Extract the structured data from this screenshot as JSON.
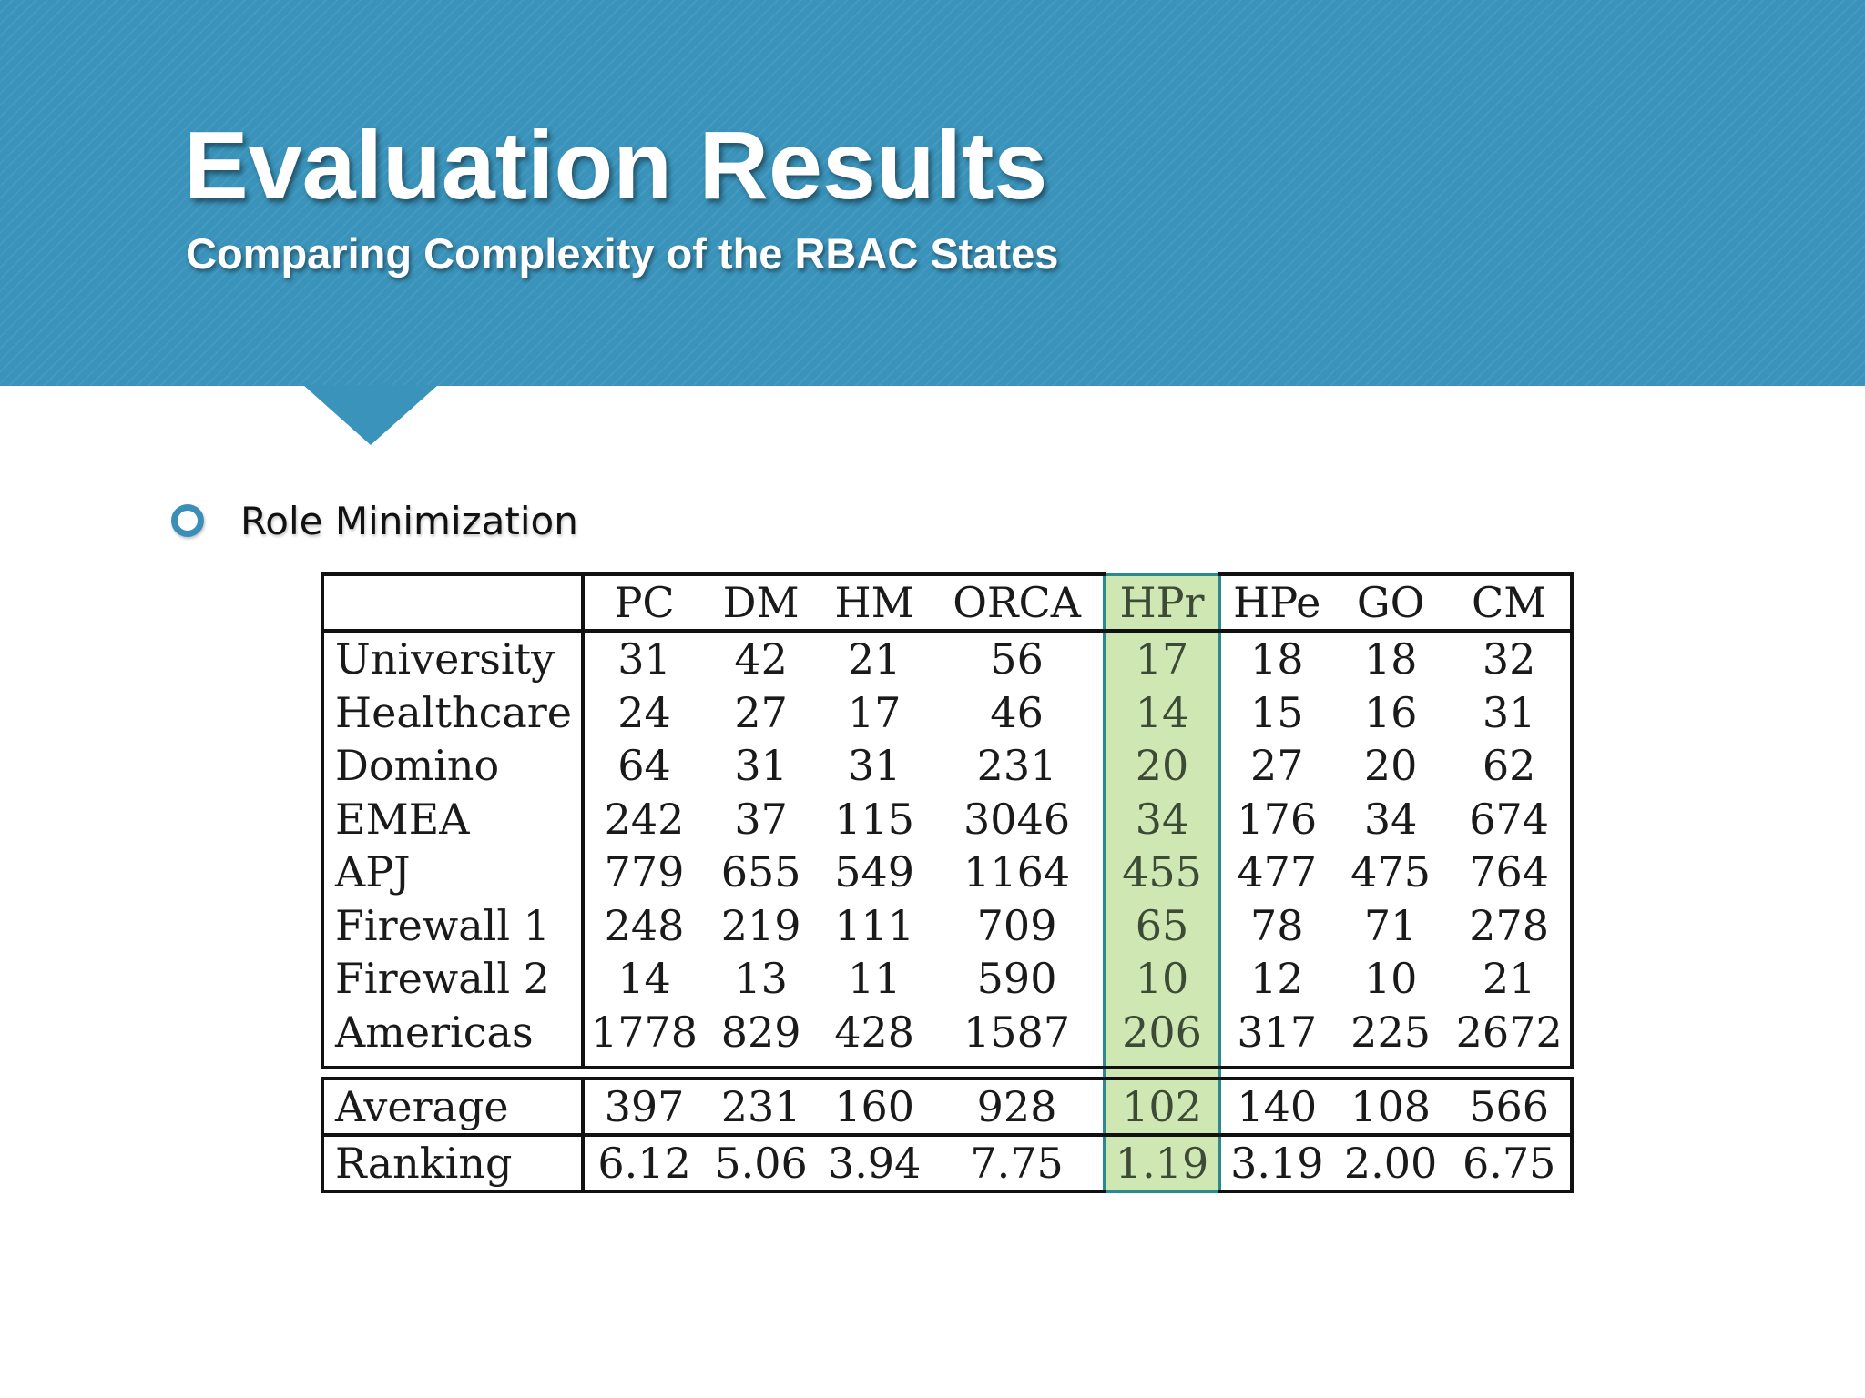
{
  "header": {
    "title": "Evaluation Results",
    "subtitle": "Comparing Complexity of the RBAC States"
  },
  "bullet": {
    "icon": "hollow-circle-bullet-icon",
    "text": "Role Minimization"
  },
  "table": {
    "columns": [
      "PC",
      "DM",
      "HM",
      "ORCA",
      "HPr",
      "HPe",
      "GO",
      "CM"
    ],
    "highlight_column": "HPr",
    "highlight_color": "#cfe7b3",
    "rows": [
      {
        "label": "University",
        "values": [
          "31",
          "42",
          "21",
          "56",
          "17",
          "18",
          "18",
          "32"
        ]
      },
      {
        "label": "Healthcare",
        "values": [
          "24",
          "27",
          "17",
          "46",
          "14",
          "15",
          "16",
          "31"
        ]
      },
      {
        "label": "Domino",
        "values": [
          "64",
          "31",
          "31",
          "231",
          "20",
          "27",
          "20",
          "62"
        ]
      },
      {
        "label": "EMEA",
        "values": [
          "242",
          "37",
          "115",
          "3046",
          "34",
          "176",
          "34",
          "674"
        ]
      },
      {
        "label": "APJ",
        "values": [
          "779",
          "655",
          "549",
          "1164",
          "455",
          "477",
          "475",
          "764"
        ]
      },
      {
        "label": "Firewall 1",
        "values": [
          "248",
          "219",
          "111",
          "709",
          "65",
          "78",
          "71",
          "278"
        ]
      },
      {
        "label": "Firewall 2",
        "values": [
          "14",
          "13",
          "11",
          "590",
          "10",
          "12",
          "10",
          "21"
        ]
      },
      {
        "label": "Americas",
        "values": [
          "1778",
          "829",
          "428",
          "1587",
          "206",
          "317",
          "225",
          "2672"
        ]
      }
    ],
    "summary": [
      {
        "label": "Average",
        "values": [
          "397",
          "231",
          "160",
          "928",
          "102",
          "140",
          "108",
          "566"
        ]
      },
      {
        "label": "Ranking",
        "values": [
          "6.12",
          "5.06",
          "3.94",
          "7.75",
          "1.19",
          "3.19",
          "2.00",
          "6.75"
        ]
      }
    ]
  },
  "colors": {
    "header_blue": "#3993bb",
    "bullet_blue": "#3a8fb8",
    "highlight_border": "#2b8a8e"
  }
}
